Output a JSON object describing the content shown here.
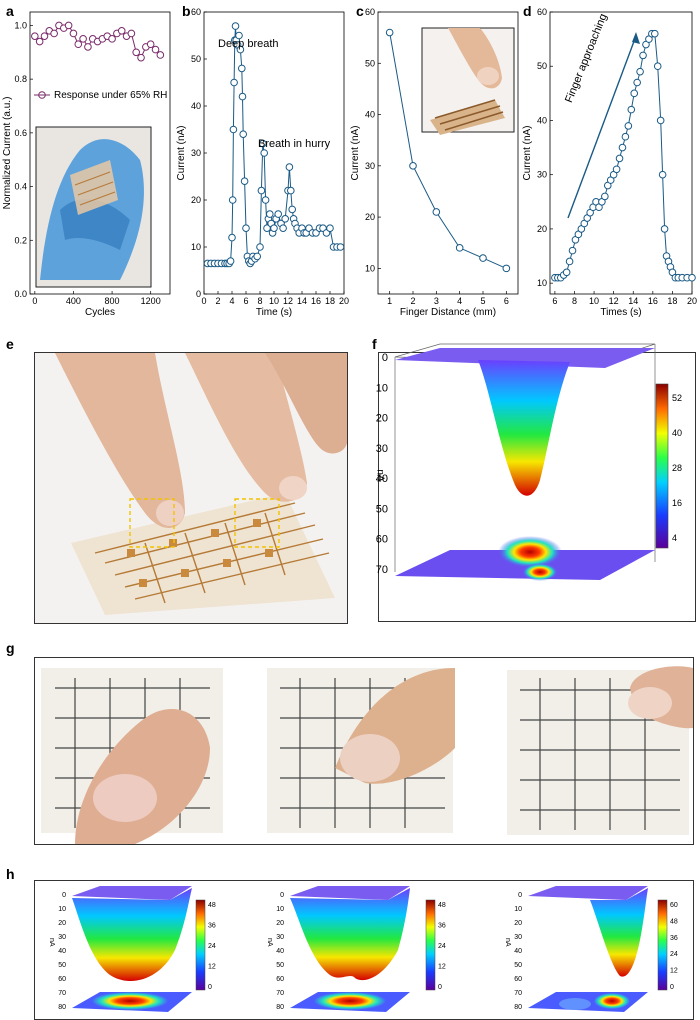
{
  "panels": {
    "a": {
      "label": "a"
    },
    "b": {
      "label": "b"
    },
    "c": {
      "label": "c"
    },
    "d": {
      "label": "d"
    },
    "e": {
      "label": "e"
    },
    "f": {
      "label": "f"
    },
    "g": {
      "label": "g"
    },
    "h": {
      "label": "h"
    }
  },
  "chart_data": [
    {
      "id": "a",
      "type": "line",
      "xlabel": "Cycles",
      "ylabel": "Normalized Current (a.u.)",
      "xlim": [
        -50,
        1400
      ],
      "ylim": [
        0.0,
        1.05
      ],
      "xticks": [
        "0",
        "400",
        "800",
        "1200"
      ],
      "yticks": [
        "0.0",
        "0.2",
        "0.4",
        "0.6",
        "0.8",
        "1.0"
      ],
      "legend": "Response under 65% RH",
      "x": [
        0,
        50,
        100,
        150,
        200,
        250,
        300,
        350,
        400,
        450,
        500,
        550,
        600,
        650,
        700,
        750,
        800,
        850,
        900,
        950,
        1000,
        1050,
        1100,
        1150,
        1200,
        1250,
        1300
      ],
      "y": [
        0.96,
        0.94,
        0.96,
        0.98,
        0.97,
        1.0,
        0.99,
        1.0,
        0.97,
        0.93,
        0.95,
        0.92,
        0.95,
        0.94,
        0.95,
        0.96,
        0.95,
        0.97,
        0.98,
        0.96,
        0.97,
        0.9,
        0.88,
        0.92,
        0.93,
        0.91,
        0.89
      ]
    },
    {
      "id": "b",
      "type": "line",
      "xlabel": "Time (s)",
      "ylabel": "Current (nA)",
      "xlim": [
        0,
        20
      ],
      "ylim": [
        0,
        60
      ],
      "xticks": [
        "0",
        "2",
        "4",
        "6",
        "8",
        "10",
        "12",
        "14",
        "16",
        "18",
        "20"
      ],
      "yticks": [
        "0",
        "10",
        "20",
        "30",
        "40",
        "50",
        "60"
      ],
      "annotations": [
        "Deep breath",
        "Breath in hurry"
      ],
      "x": [
        0.5,
        1,
        1.5,
        2,
        2.5,
        3,
        3.3,
        3.6,
        3.8,
        4,
        4.1,
        4.2,
        4.3,
        4.4,
        4.5,
        4.6,
        4.8,
        5,
        5.2,
        5.4,
        5.5,
        5.6,
        5.8,
        6,
        6.2,
        6.4,
        6.6,
        6.8,
        7,
        7.3,
        7.6,
        8,
        8.2,
        8.4,
        8.6,
        8.8,
        9,
        9.2,
        9.4,
        9.6,
        9.8,
        10,
        10.3,
        10.6,
        11,
        11.3,
        11.6,
        12,
        12.2,
        12.4,
        12.6,
        12.8,
        13,
        13.3,
        13.6,
        14,
        14.3,
        14.6,
        15,
        15.5,
        16,
        16.5,
        17,
        17.5,
        18,
        18.5,
        19,
        19.5
      ],
      "y": [
        6.5,
        6.5,
        6.5,
        6.5,
        6.5,
        6.5,
        6.5,
        6.5,
        7,
        12,
        20,
        35,
        45,
        54,
        57,
        54,
        53,
        55,
        52,
        48,
        42,
        34,
        24,
        14,
        8,
        7,
        6.5,
        7,
        8,
        7.5,
        8,
        10,
        22,
        32,
        30,
        20,
        14,
        16,
        17,
        15,
        13,
        14,
        16,
        17,
        15,
        14,
        16,
        22,
        27,
        22,
        18,
        16,
        15,
        14,
        13,
        14,
        13,
        13,
        14,
        13,
        13,
        14,
        14,
        13,
        14,
        10,
        10,
        10
      ]
    },
    {
      "id": "c",
      "type": "line",
      "xlabel": "Finger Distance (mm)",
      "ylabel": "Current (nA)",
      "xlim": [
        0.5,
        6.5
      ],
      "ylim": [
        5,
        60
      ],
      "xticks": [
        "1",
        "2",
        "3",
        "4",
        "5",
        "6"
      ],
      "yticks": [
        "10",
        "20",
        "30",
        "40",
        "50",
        "60"
      ],
      "x": [
        1,
        2,
        3,
        4,
        5,
        6
      ],
      "y": [
        56,
        30,
        21,
        14,
        12,
        10
      ]
    },
    {
      "id": "d",
      "type": "line",
      "xlabel": "Times (s)",
      "ylabel": "Current (nA)",
      "xlim": [
        5.5,
        20
      ],
      "ylim": [
        8,
        60
      ],
      "xticks": [
        "6",
        "8",
        "10",
        "12",
        "14",
        "16",
        "18",
        "20"
      ],
      "yticks": [
        "10",
        "20",
        "30",
        "40",
        "50",
        "60"
      ],
      "annotations": [
        "Finger approaching"
      ],
      "x": [
        6,
        6.3,
        6.6,
        6.9,
        7.2,
        7.5,
        7.8,
        8.1,
        8.4,
        8.7,
        9,
        9.3,
        9.6,
        9.9,
        10.2,
        10.5,
        10.8,
        11.1,
        11.4,
        11.7,
        12,
        12.3,
        12.6,
        12.9,
        13.2,
        13.5,
        13.8,
        14.1,
        14.4,
        14.7,
        15,
        15.3,
        15.6,
        15.9,
        16.2,
        16.5,
        16.8,
        17,
        17.2,
        17.4,
        17.6,
        17.8,
        18,
        18.3,
        18.6,
        19,
        19.5,
        20
      ],
      "y": [
        11,
        11,
        11,
        11.5,
        12,
        14,
        16,
        18,
        19,
        20,
        21,
        22,
        23,
        24,
        25,
        24,
        25,
        26,
        28,
        29,
        30,
        31,
        33,
        35,
        37,
        39,
        42,
        45,
        47,
        49,
        52,
        54,
        55,
        56,
        56,
        50,
        40,
        30,
        20,
        15,
        14,
        13,
        12,
        11,
        11,
        11,
        11,
        11
      ]
    },
    {
      "id": "f",
      "type": "heatmap",
      "zlabel": "nA",
      "zticks": [
        "0",
        "10",
        "20",
        "30",
        "40",
        "50",
        "60",
        "70"
      ],
      "colorbar_ticks": [
        "52",
        "40",
        "28",
        "16",
        "4"
      ]
    },
    {
      "id": "h1",
      "type": "heatmap",
      "zlabel": "nA",
      "zticks": [
        "0",
        "10",
        "20",
        "30",
        "40",
        "50",
        "60",
        "70",
        "80"
      ],
      "colorbar_ticks": [
        "48",
        "36",
        "24",
        "12",
        "0"
      ]
    },
    {
      "id": "h2",
      "type": "heatmap",
      "zlabel": "nA",
      "zticks": [
        "0",
        "10",
        "20",
        "30",
        "40",
        "50",
        "60",
        "70",
        "80"
      ],
      "colorbar_ticks": [
        "48",
        "36",
        "24",
        "12",
        "0"
      ]
    },
    {
      "id": "h3",
      "type": "heatmap",
      "zlabel": "nA",
      "zticks": [
        "0",
        "10",
        "20",
        "30",
        "40",
        "50",
        "60",
        "70",
        "80"
      ],
      "colorbar_ticks": [
        "60",
        "48",
        "36",
        "24",
        "12",
        "0"
      ]
    }
  ],
  "colors": {
    "line": "#1a5a86",
    "marker_a": "#7a2a6a",
    "arrow": "#1a5a86",
    "box": "#f2c200",
    "red": "#c0392b"
  }
}
